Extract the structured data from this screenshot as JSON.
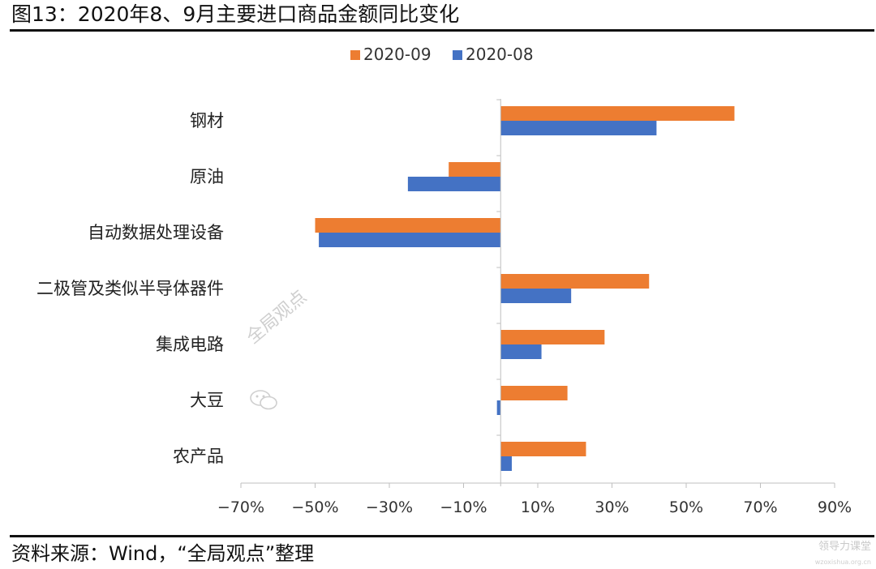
{
  "figure": {
    "title": "图13：2020年8、9月主要进口商品金额同比变化",
    "source": "资料来源：Wind，“全局观点”整理",
    "watermark": "全局观点",
    "corner_logo": "领导力课堂",
    "corner_url": "wzoxishua.org.cn"
  },
  "colors": {
    "s2020_09": "#ED7D31",
    "s2020_08": "#4472C4",
    "axis": "#bfbfbf"
  },
  "chart_data": {
    "type": "bar",
    "orientation": "horizontal",
    "categories": [
      "钢材",
      "原油",
      "自动数据处理设备",
      "二极管及类似半导体器件",
      "集成电路",
      "大豆",
      "农产品"
    ],
    "series": [
      {
        "name": "2020-09",
        "color": "#ED7D31",
        "values": [
          63,
          -14,
          -50,
          40,
          28,
          18,
          23
        ]
      },
      {
        "name": "2020-08",
        "color": "#4472C4",
        "values": [
          42,
          -25,
          -49,
          19,
          11,
          -1,
          3
        ]
      }
    ],
    "xlim": [
      -70,
      90
    ],
    "xticks": [
      -70,
      -50,
      -30,
      -10,
      10,
      30,
      50,
      70,
      90
    ],
    "xtick_labels": [
      "−70%",
      "−50%",
      "−30%",
      "−10%",
      "10%",
      "30%",
      "50%",
      "70%",
      "90%"
    ],
    "legend_position": "top",
    "grid": false
  }
}
